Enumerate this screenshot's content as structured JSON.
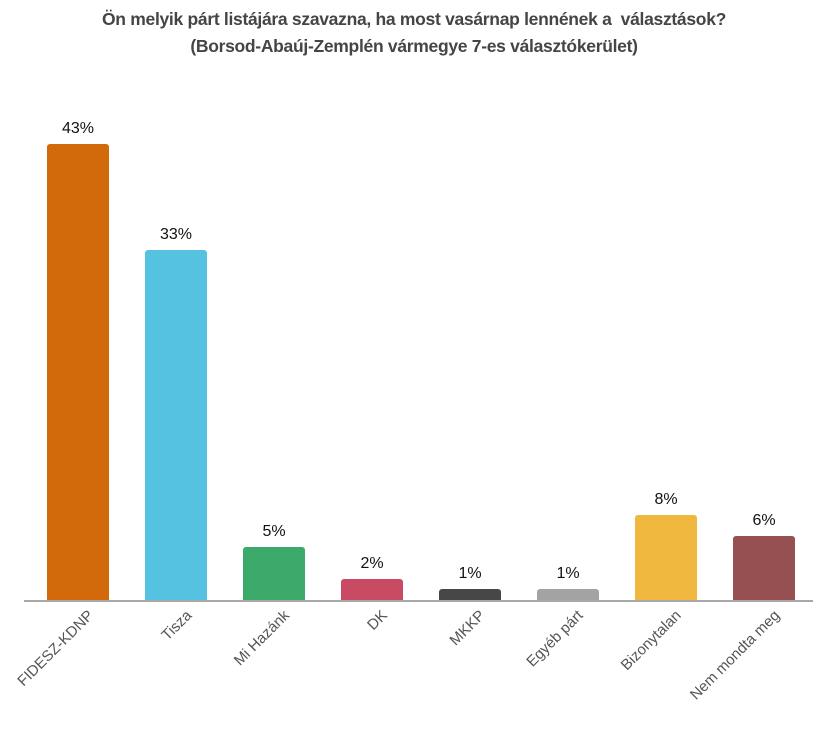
{
  "chart_data": {
    "type": "bar",
    "title": "Ön melyik párt listájára szavazna, ha most vasárnap lennének a  választások?",
    "subtitle": "(Borsod-Abaúj-Zemplén vármegye 7-es választókerület)",
    "categories": [
      "FIDESZ-KDNP",
      "Tisza",
      "Mi Hazánk",
      "DK",
      "MKKP",
      "Egyéb párt",
      "Bizonytalan",
      "Nem mondta meg"
    ],
    "values": [
      43,
      33,
      5,
      2,
      1,
      1,
      8,
      6
    ],
    "value_labels": [
      "43%",
      "33%",
      "5%",
      "2%",
      "1%",
      "1%",
      "8%",
      "6%"
    ],
    "bar_colors": [
      "#d2690a",
      "#56c2e1",
      "#3baa6b",
      "#c94b63",
      "#474747",
      "#a3a3a3",
      "#f0b73e",
      "#965052"
    ],
    "xlabel": "",
    "ylabel": "",
    "ylim": [
      0,
      45
    ],
    "grid": false,
    "legend_position": "none",
    "tick_label_rotation_deg": 45,
    "value_labels_position": "above",
    "colors": {
      "title": "#454545",
      "value_label": "#111111",
      "tick_label": "#555555",
      "axis_line": "#a8a8a8",
      "background": "#ffffff"
    }
  }
}
